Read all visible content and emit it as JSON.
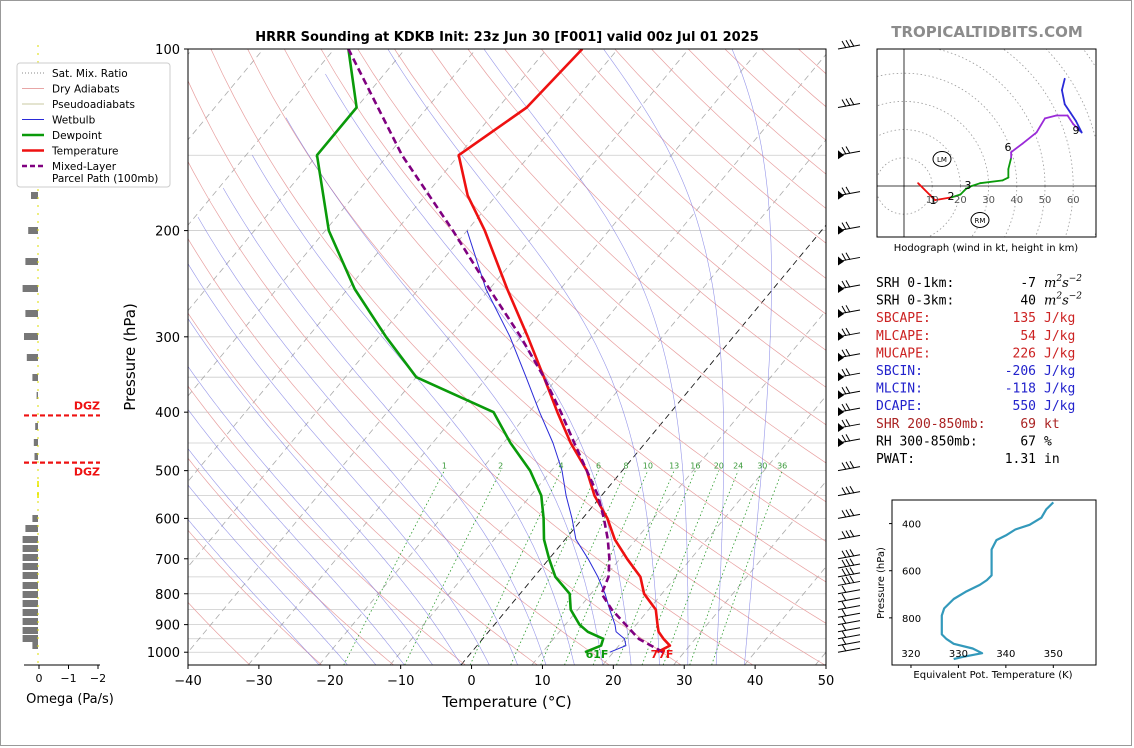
{
  "chart_data": [
    {
      "type": "skew-t",
      "title": "HRRR Sounding at KDKB Init: 23z Jun 30 [F001] valid 00z Jul 01 2025",
      "xlabel": "Temperature (°C)",
      "ylabel": "Pressure (hPa)",
      "xlim": [
        -40,
        50
      ],
      "ylim": [
        1050,
        100
      ],
      "y_scale": "log",
      "x_ticks": [
        "−40",
        "−30",
        "−20",
        "−10",
        "0",
        "10",
        "20",
        "30",
        "40",
        "50"
      ],
      "y_ticks": [
        "100",
        "200",
        "300",
        "400",
        "500",
        "600",
        "700",
        "800",
        "900",
        "1000"
      ],
      "mixing_ratio_labels": [
        "1",
        "2",
        "4",
        "6",
        "8",
        "10",
        "13",
        "16",
        "20",
        "24",
        "30",
        "36"
      ],
      "legend": [
        {
          "name": "Sat. Mix. Ratio",
          "color": "#888888",
          "style": "dotted"
        },
        {
          "name": "Dry Adiabats",
          "color": "#e8a6a6",
          "style": "solid"
        },
        {
          "name": "Pseudoadiabats",
          "color": "#c8c8a0",
          "style": "solid"
        },
        {
          "name": "Wetbulb",
          "color": "#2a2ad8",
          "style": "solid"
        },
        {
          "name": "Dewpoint",
          "color": "#0a9a0a",
          "style": "solid"
        },
        {
          "name": "Temperature",
          "color": "#ee1111",
          "style": "solid"
        },
        {
          "name": "Mixed-Layer\nParcel Path (100mb)",
          "color": "#800080",
          "style": "dashed"
        }
      ],
      "series": [
        {
          "name": "Temperature",
          "points": [
            [
              1000,
              26.2
            ],
            [
              975,
              27.2
            ],
            [
              950,
              25.5
            ],
            [
              925,
              24.0
            ],
            [
              900,
              23.0
            ],
            [
              850,
              21.0
            ],
            [
              800,
              17.5
            ],
            [
              750,
              15.0
            ],
            [
              700,
              11.0
            ],
            [
              650,
              7.0
            ],
            [
              600,
              3.5
            ],
            [
              550,
              -1.0
            ],
            [
              500,
              -5.0
            ],
            [
              450,
              -10.5
            ],
            [
              400,
              -16.0
            ],
            [
              350,
              -22.0
            ],
            [
              300,
              -29.0
            ],
            [
              250,
              -37.5
            ],
            [
              200,
              -47.5
            ],
            [
              175,
              -54.0
            ],
            [
              150,
              -60.0
            ],
            [
              125,
              -56.0
            ],
            [
              100,
              -55.0
            ]
          ]
        },
        {
          "name": "Dewpoint",
          "points": [
            [
              1000,
              16.0
            ],
            [
              975,
              17.5
            ],
            [
              950,
              17.0
            ],
            [
              925,
              14.0
            ],
            [
              900,
              12.0
            ],
            [
              850,
              9.0
            ],
            [
              800,
              7.0
            ],
            [
              750,
              3.0
            ],
            [
              700,
              0.0
            ],
            [
              650,
              -3.0
            ],
            [
              600,
              -5.5
            ],
            [
              550,
              -8.5
            ],
            [
              500,
              -13.0
            ],
            [
              450,
              -19.0
            ],
            [
              400,
              -25.0
            ],
            [
              350,
              -40.0
            ],
            [
              300,
              -49.0
            ],
            [
              250,
              -59.0
            ],
            [
              200,
              -69.5
            ],
            [
              150,
              -80.0
            ],
            [
              125,
              -80.0
            ],
            [
              100,
              -88.0
            ]
          ]
        },
        {
          "name": "Wetbulb",
          "points": [
            [
              1000,
              19.5
            ],
            [
              975,
              21.0
            ],
            [
              950,
              20.0
            ],
            [
              925,
              18.0
            ],
            [
              900,
              17.0
            ],
            [
              850,
              14.5
            ],
            [
              800,
              12.0
            ],
            [
              750,
              9.0
            ],
            [
              700,
              5.5
            ],
            [
              650,
              1.5
            ],
            [
              600,
              -1.5
            ],
            [
              550,
              -5.0
            ],
            [
              500,
              -8.5
            ],
            [
              450,
              -13.0
            ],
            [
              400,
              -18.5
            ],
            [
              350,
              -24.5
            ],
            [
              300,
              -31.5
            ],
            [
              250,
              -40.5
            ],
            [
              200,
              -50.0
            ]
          ]
        },
        {
          "name": "Mixed-Layer Parcel Path (100mb)",
          "points": [
            [
              1000,
              27.0
            ],
            [
              950,
              22.0
            ],
            [
              900,
              18.5
            ],
            [
              850,
              14.8
            ],
            [
              800,
              11.5
            ],
            [
              750,
              10.5
            ],
            [
              700,
              8.5
            ],
            [
              650,
              6.0
            ],
            [
              600,
              3.0
            ],
            [
              550,
              -0.5
            ],
            [
              500,
              -5.0
            ],
            [
              450,
              -10.0
            ],
            [
              400,
              -15.5
            ],
            [
              350,
              -22.0
            ],
            [
              300,
              -30.0
            ],
            [
              250,
              -40.0
            ],
            [
              200,
              -52.0
            ],
            [
              150,
              -68.0
            ],
            [
              100,
              -88.0
            ]
          ]
        }
      ],
      "surface_labels": {
        "dewpoint": "61F",
        "temperature": "77F"
      },
      "dgz_label": "DGZ",
      "dgz_pressures": [
        405,
        485
      ],
      "omega_axis": {
        "label": "Omega (Pa/s)",
        "ticks": [
          "0",
          "−1",
          "−2"
        ]
      }
    },
    {
      "type": "hodograph",
      "caption": "Hodograph (wind in kt, height in km)",
      "ring_labels": [
        "10",
        "20",
        "30",
        "40",
        "50",
        "60"
      ],
      "storm_motion_labels": [
        "LM",
        "RM"
      ],
      "height_labels": [
        "1",
        "2",
        "3",
        "6",
        "9"
      ],
      "trace_u_v_kt": [
        [
          5,
          1
        ],
        [
          11,
          -5
        ],
        [
          17,
          -4
        ],
        [
          20,
          -3
        ],
        [
          22,
          -1
        ],
        [
          24,
          0
        ],
        [
          27,
          1
        ],
        [
          35,
          2
        ],
        [
          37,
          3
        ],
        [
          37,
          6
        ],
        [
          38,
          10
        ],
        [
          38,
          12
        ],
        [
          42,
          15
        ],
        [
          47,
          19
        ],
        [
          50,
          24
        ],
        [
          54,
          25
        ],
        [
          58,
          25
        ],
        [
          60,
          22
        ],
        [
          62,
          20
        ],
        [
          63,
          19
        ],
        [
          61,
          23
        ],
        [
          59,
          26
        ],
        [
          57,
          29
        ],
        [
          56,
          34
        ],
        [
          57,
          38
        ]
      ]
    },
    {
      "type": "line",
      "xlabel": "Equivalent Pot. Temperature (K)",
      "ylabel": "Pressure (hPa)",
      "x_ticks": [
        "320",
        "330",
        "340",
        "350"
      ],
      "y_ticks": [
        "400",
        "600",
        "800"
      ],
      "xlim": [
        316,
        359
      ],
      "ylim": [
        1000,
        300
      ],
      "series": [
        {
          "name": "Theta-E",
          "points": [
            [
              329.0,
              975
            ],
            [
              331.0,
              965
            ],
            [
              335.0,
              950
            ],
            [
              333.0,
              930
            ],
            [
              329.0,
              910
            ],
            [
              327.5,
              890
            ],
            [
              326.5,
              870
            ],
            [
              326.5,
              830
            ],
            [
              326.5,
              790
            ],
            [
              327.0,
              760
            ],
            [
              329.0,
              720
            ],
            [
              331.5,
              690
            ],
            [
              334.5,
              660
            ],
            [
              336.0,
              640
            ],
            [
              337.0,
              620
            ],
            [
              337.0,
              560
            ],
            [
              337.0,
              510
            ],
            [
              338.0,
              470
            ],
            [
              340.0,
              450
            ],
            [
              342.0,
              425
            ],
            [
              345.0,
              405
            ],
            [
              347.5,
              375
            ],
            [
              348.5,
              340
            ],
            [
              350.0,
              310
            ]
          ]
        }
      ]
    }
  ],
  "branding": "TROPICALTIDBITS.COM",
  "indices": [
    {
      "label": "SRH 0-1km:",
      "value": "-7",
      "unit": "m2s-2",
      "color": "#000000"
    },
    {
      "label": "SRH 0-3km:",
      "value": "40",
      "unit": "m2s-2",
      "color": "#000000"
    },
    {
      "label": "SBCAPE:",
      "value": "135",
      "unit": "J/kg",
      "color": "#cc2222"
    },
    {
      "label": "MLCAPE:",
      "value": "54",
      "unit": "J/kg",
      "color": "#cc2222"
    },
    {
      "label": "MUCAPE:",
      "value": "226",
      "unit": "J/kg",
      "color": "#cc2222"
    },
    {
      "label": "SBCIN:",
      "value": "-206",
      "unit": "J/kg",
      "color": "#2222cc"
    },
    {
      "label": "MLCIN:",
      "value": "-118",
      "unit": "J/kg",
      "color": "#2222cc"
    },
    {
      "label": "DCAPE:",
      "value": "550",
      "unit": "J/kg",
      "color": "#2222cc"
    },
    {
      "label": "SHR 200-850mb:",
      "value": "69",
      "unit": "kt",
      "color": "#aa2222"
    },
    {
      "label": "RH 300-850mb:",
      "value": "67",
      "unit": "%",
      "color": "#000000"
    },
    {
      "label": "PWAT:",
      "value": "1.31",
      "unit": "in",
      "color": "#000000"
    }
  ]
}
